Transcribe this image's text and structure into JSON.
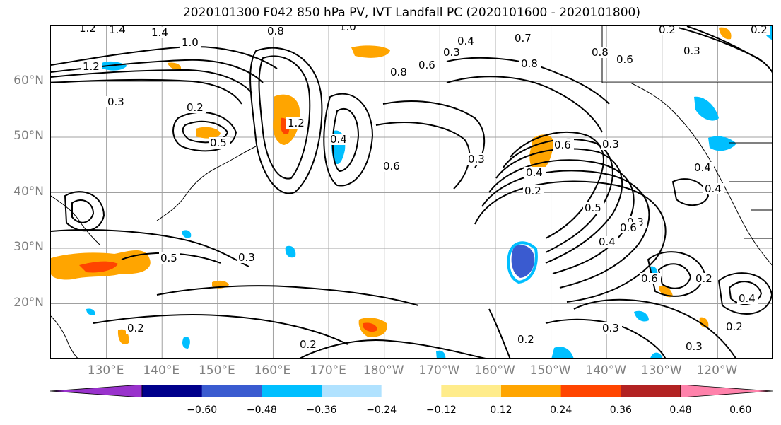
{
  "title": "2020101300 F042 850 hPa PV, IVT Landfall PC (2020101600 - 2020101800)",
  "lat_labels": [
    {
      "text": "60°N",
      "lat": 60
    },
    {
      "text": "50°N",
      "lat": 50
    },
    {
      "text": "40°N",
      "lat": 40
    },
    {
      "text": "30°N",
      "lat": 30
    },
    {
      "text": "20°N",
      "lat": 20
    }
  ],
  "lon_labels": [
    {
      "text": "130°E",
      "lon": 130
    },
    {
      "text": "140°E",
      "lon": 140
    },
    {
      "text": "150°E",
      "lon": 150
    },
    {
      "text": "160°E",
      "lon": 160
    },
    {
      "text": "170°E",
      "lon": 170
    },
    {
      "text": "180°W",
      "lon": 180
    },
    {
      "text": "170°W",
      "lon": 190
    },
    {
      "text": "160°W",
      "lon": 200
    },
    {
      "text": "150°W",
      "lon": 210
    },
    {
      "text": "140°W",
      "lon": 220
    },
    {
      "text": "130°W",
      "lon": 230
    },
    {
      "text": "120°W",
      "lon": 240
    }
  ],
  "colorbar": {
    "ticks": [
      "−0.60",
      "−0.48",
      "−0.36",
      "−0.24",
      "−0.12",
      "0.12",
      "0.24",
      "0.36",
      "0.48",
      "0.60"
    ],
    "colors": [
      "#9932cc",
      "#00008b",
      "#3a5bd0",
      "#00bfff",
      "#b0e2ff",
      "#ffffff",
      "#ffec8b",
      "#ffa500",
      "#ff4500",
      "#b22222",
      "#ff82ab"
    ]
  },
  "contour_labels": [
    "1.2",
    "1.4",
    "1.4",
    "1.0",
    "0.8",
    "1.0",
    "0.7",
    "0.4",
    "0.3",
    "0.2",
    "0.3",
    "0.2",
    "1.2",
    "0.8",
    "0.6",
    "0.8",
    "0.8",
    "0.6",
    "0.3",
    "0.2",
    "0.5",
    "1.2",
    "0.4",
    "0.6",
    "0.3",
    "0.6",
    "0.3",
    "0.4",
    "0.2",
    "0.4",
    "0.4",
    "0.5",
    "0.3",
    "0.5",
    "0.6",
    "0.4",
    "0.3",
    "0.6",
    "0.2",
    "0.4",
    "0.2",
    "0.3",
    "0.2",
    "0.2",
    "0.3",
    "0.2"
  ],
  "colors": {
    "contour": "#000000",
    "grid": "#a0a0a0",
    "tick_text": "#808080"
  }
}
